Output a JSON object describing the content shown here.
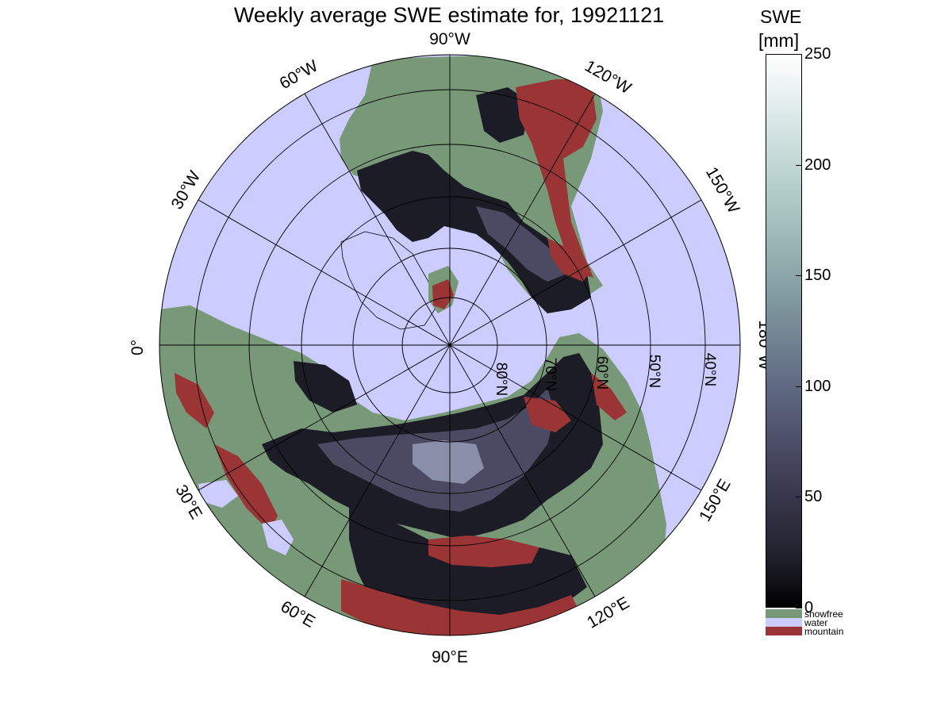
{
  "title": "Weekly average SWE estimate for, 19921121",
  "colors": {
    "water": "#ccccff",
    "snowfree": "#779977",
    "mountain": "#9b3434",
    "snow_low": "#1c1c26",
    "snow_mid": "#4a4a62",
    "snow_high": "#8a8fa8",
    "coast": "#000000"
  },
  "map": {
    "projection": "north-polar-stereographic",
    "lon_labels": [
      {
        "id": "90W",
        "text": "90°W"
      },
      {
        "id": "120W",
        "text": "120°W"
      },
      {
        "id": "150W",
        "text": "150°W"
      },
      {
        "id": "180W",
        "text": "180°W"
      },
      {
        "id": "150E",
        "text": "150°E"
      },
      {
        "id": "120E",
        "text": "120°E"
      },
      {
        "id": "90E",
        "text": "90°E"
      },
      {
        "id": "60E",
        "text": "60°E"
      },
      {
        "id": "30E",
        "text": "30°E"
      },
      {
        "id": "0",
        "text": "0°"
      },
      {
        "id": "30W",
        "text": "30°W"
      },
      {
        "id": "60W",
        "text": "60°W"
      }
    ],
    "lat_labels": [
      {
        "id": "80N",
        "text": "80°N"
      },
      {
        "id": "70N",
        "text": "70°N"
      },
      {
        "id": "60N",
        "text": "60°N"
      },
      {
        "id": "50N",
        "text": "50°N"
      },
      {
        "id": "40N",
        "text": "40°N"
      }
    ]
  },
  "colorbar": {
    "title": "SWE",
    "unit": "[mm]",
    "min": 0,
    "max": 250,
    "ticks": [
      {
        "value": 250,
        "text": "250"
      },
      {
        "value": 200,
        "text": "200"
      },
      {
        "value": 150,
        "text": "150"
      },
      {
        "value": 100,
        "text": "100"
      },
      {
        "value": 50,
        "text": "50"
      },
      {
        "value": 0,
        "text": "0"
      }
    ]
  },
  "legend": [
    {
      "key": "snowfree",
      "label": "snowfree",
      "color": "#779977"
    },
    {
      "key": "water",
      "label": "water",
      "color": "#ccccff"
    },
    {
      "key": "mountain",
      "label": "mountain",
      "color": "#9b3434"
    }
  ]
}
